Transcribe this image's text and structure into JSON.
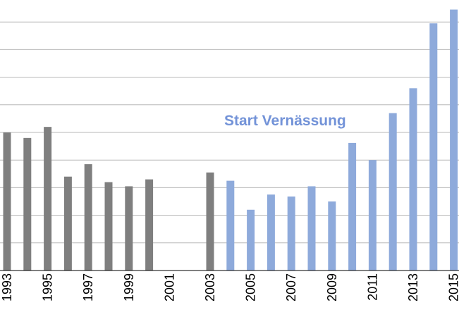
{
  "chart_data": {
    "type": "bar",
    "title": "",
    "xlabel": "",
    "ylabel": "",
    "categories": [
      "1993",
      "1994",
      "1995",
      "1996",
      "1997",
      "1998",
      "1999",
      "2000",
      "2001",
      "2002",
      "2003",
      "2004",
      "2005",
      "2006",
      "2007",
      "2008",
      "2009",
      "2010",
      "2011",
      "2012",
      "2013",
      "2014",
      "2015"
    ],
    "tick_labels": [
      "1993",
      "1995",
      "1997",
      "1999",
      "2001",
      "2003",
      "2005",
      "2007",
      "2009",
      "2011",
      "2013",
      "2015"
    ],
    "series": [
      {
        "values": [
          5.0,
          4.8,
          5.2,
          3.4,
          3.85,
          3.2,
          3.05,
          3.3,
          null,
          null,
          3.55,
          null,
          null,
          null,
          null,
          null,
          null,
          null,
          null,
          null,
          null,
          null,
          null
        ],
        "color": "#7f7f7f"
      },
      {
        "values": [
          null,
          null,
          null,
          null,
          null,
          null,
          null,
          null,
          null,
          null,
          null,
          3.25,
          2.2,
          2.75,
          2.68,
          3.05,
          2.5,
          4.62,
          4.0,
          5.7,
          6.6,
          8.95,
          9.45
        ],
        "color": "#8eaadb"
      }
    ],
    "ylim": [
      0,
      9.7
    ],
    "gridlines": [
      1,
      2,
      3,
      4,
      5,
      6,
      7,
      8,
      9
    ],
    "grid": true,
    "annotation": {
      "text": "Start Vernässung",
      "color": "#7393d8"
    }
  }
}
